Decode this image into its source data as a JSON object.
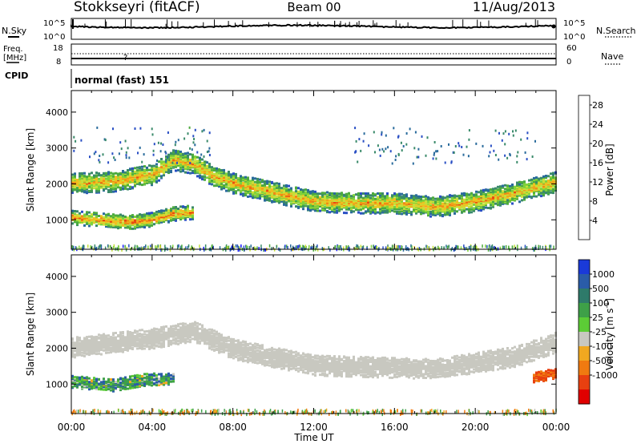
{
  "header": {
    "station": "Stokkseyri (fitACF)",
    "beam": "Beam 00",
    "date": "11/Aug/2013"
  },
  "top_panels": {
    "nsky_label": "N.Sky",
    "nsky_ticks": [
      "10^5",
      "10^0"
    ],
    "nsearch_label": "N.Search",
    "freq_label": "Freq.",
    "freq_unit": "[MHz]",
    "freq_ticks": [
      "18",
      "8"
    ],
    "nave_label": "Nave",
    "nave_ticks": [
      "60",
      "0"
    ],
    "cpid_label": "CPID",
    "cpid_text": "normal (fast) 151"
  },
  "chart_data": [
    {
      "type": "heatmap",
      "title": "",
      "quantity": "Power",
      "ylabel": "Slant Range [km]",
      "xlabel": "Time UT",
      "xlim": [
        "00:00",
        "24:00"
      ],
      "ylim": [
        180,
        4600
      ],
      "x_ticks": [
        "00:00",
        "04:00",
        "08:00",
        "12:00",
        "16:00",
        "20:00",
        "00:00"
      ],
      "y_ticks": [
        1000,
        2000,
        3000,
        4000
      ],
      "colorbar": {
        "label": "Power [dB]",
        "ticks": [
          4,
          8,
          12,
          16,
          20,
          24,
          28
        ],
        "range": [
          0,
          30
        ],
        "colors": [
          "#1a1aff",
          "#2a4fc4",
          "#2a6b9c",
          "#3a8a6a",
          "#4caa3e",
          "#7fd23a",
          "#c6e03a",
          "#f0c020",
          "#f08a14",
          "#e84a12",
          "#e00000"
        ]
      },
      "bands": [
        {
          "name": "lower",
          "points": [
            [
              0.0,
              1100
            ],
            [
              1.0,
              1050
            ],
            [
              2.0,
              1000
            ],
            [
              3.0,
              980
            ],
            [
              4.0,
              1050
            ],
            [
              5.0,
              1200
            ],
            [
              6.0,
              1250
            ]
          ],
          "half_width": 150,
          "peak_dB": 22
        },
        {
          "name": "upper",
          "points": [
            [
              0.0,
              2050
            ],
            [
              2.0,
              2100
            ],
            [
              4.0,
              2300
            ],
            [
              5.0,
              2700
            ],
            [
              6.0,
              2600
            ],
            [
              7.0,
              2250
            ],
            [
              8.0,
              2050
            ],
            [
              10.0,
              1800
            ],
            [
              12.0,
              1550
            ],
            [
              14.0,
              1500
            ],
            [
              16.0,
              1500
            ],
            [
              18.0,
              1400
            ],
            [
              20.0,
              1550
            ],
            [
              22.0,
              1800
            ],
            [
              24.0,
              2100
            ]
          ],
          "half_width": 220,
          "peak_dB": 20
        }
      ]
    },
    {
      "type": "heatmap",
      "title": "",
      "quantity": "Velocity",
      "ylabel": "Slant Range [km]",
      "xlabel": "Time UT",
      "xlim": [
        "00:00",
        "24:00"
      ],
      "ylim": [
        180,
        4600
      ],
      "x_ticks": [
        "00:00",
        "04:00",
        "08:00",
        "12:00",
        "16:00",
        "20:00",
        "00:00"
      ],
      "y_ticks": [
        1000,
        2000,
        3000,
        4000
      ],
      "colorbar": {
        "label": "Velocity [m s^-1]",
        "ticks": [
          1000,
          500,
          100,
          25,
          -25,
          -100,
          -500,
          -1000
        ],
        "colors": [
          "#1a3ad8",
          "#2a5ca8",
          "#2e7a6a",
          "#3ea048",
          "#5ccc36",
          "#c8c8c0",
          "#f0a820",
          "#f07a10",
          "#e84010",
          "#e00000"
        ]
      },
      "bands": [
        {
          "name": "lower-positive",
          "points": [
            [
              0.0,
              1100
            ],
            [
              2.0,
              1000
            ],
            [
              3.5,
              1150
            ],
            [
              5.0,
              1200
            ]
          ],
          "value_mps": 200
        },
        {
          "name": "ground-scatter",
          "points": [
            [
              0.0,
              2050
            ],
            [
              4.0,
              2300
            ],
            [
              6.0,
              2500
            ],
            [
              8.0,
              2000
            ],
            [
              12.0,
              1550
            ],
            [
              18.0,
              1450
            ],
            [
              22.0,
              1800
            ],
            [
              24.0,
              2200
            ]
          ],
          "value_mps": 0
        },
        {
          "name": "negative-late",
          "points": [
            [
              22.8,
              1200
            ],
            [
              24.0,
              1350
            ]
          ],
          "value_mps": -600
        }
      ]
    }
  ]
}
